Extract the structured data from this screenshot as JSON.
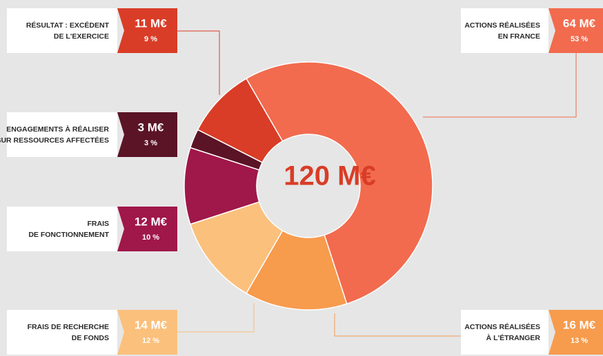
{
  "chart_data": {
    "type": "donut",
    "center_label": "120 M€",
    "categories": [
      [
        "ACTIONS RÉALISÉES",
        "EN FRANCE"
      ],
      [
        "ACTIONS RÉALISÉES",
        "À L'ÉTRANGER"
      ],
      [
        "FRAIS DE RECHERCHE",
        "DE FONDS"
      ],
      [
        "FRAIS",
        "DE FONCTIONNEMENT"
      ],
      [
        "ENGAGEMENTS À RÉALISER",
        "SUR RESSOURCES AFFECTÉES"
      ],
      [
        "RÉSULTAT : EXCÉDENT",
        "DE L'EXERCICE"
      ]
    ],
    "values": [
      64,
      16,
      14,
      12,
      3,
      11
    ],
    "value_labels": [
      "64 M€",
      "16 M€",
      "14 M€",
      "12 M€",
      "3 M€",
      "11 M€"
    ],
    "shares": [
      53,
      13,
      12,
      10,
      3,
      9
    ],
    "share_labels": [
      "53 %",
      "13 %",
      "12 %",
      "10 %",
      "3 %",
      "9 %"
    ],
    "colors": [
      "#f26b4e",
      "#f79b4d",
      "#fbc07c",
      "#a0174a",
      "#5a1426",
      "#d93d27"
    ]
  }
}
